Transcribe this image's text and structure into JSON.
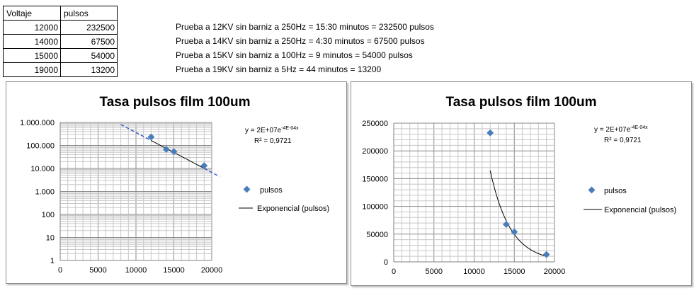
{
  "sheet": {
    "headers": [
      "Voltaje",
      "pulsos"
    ],
    "rows": [
      {
        "voltaje": "12000",
        "pulsos": "232500",
        "note": "Prueba a 12KV sin barniz a 250Hz = 15:30 minutos = 232500 pulsos"
      },
      {
        "voltaje": "14000",
        "pulsos": "67500",
        "note": "Prueba a 14KV sin barniz a 250Hz = 4:30 minutos = 67500 pulsos"
      },
      {
        "voltaje": "15000",
        "pulsos": "54000",
        "note": "Prueba a 15KV sin barniz a 100Hz = 9 minutos = 54000 pulsos"
      },
      {
        "voltaje": "19000",
        "pulsos": "13200",
        "note": "Prueba a 19KV sin barniz a 5Hz = 44 minutos = 13200"
      }
    ]
  },
  "chart_data": [
    {
      "type": "scatter",
      "title": "Tasa pulsos film 100um",
      "yscale": "log",
      "x": [
        12000,
        14000,
        15000,
        19000
      ],
      "series": [
        {
          "name": "pulsos",
          "values": [
            232500,
            67500,
            54000,
            13200
          ]
        }
      ],
      "trendline": {
        "name": "Exponencial (pulsos)",
        "a": 20000000,
        "b": -0.0004,
        "x_range": [
          8000,
          21000
        ]
      },
      "equation": {
        "base": "y = 2E+07e",
        "exp": "-4E-04x"
      },
      "r2": "R² = 0,9721",
      "xlim": [
        0,
        20000
      ],
      "ylim": [
        1,
        1000000
      ],
      "xticks": [
        "0",
        "5000",
        "10000",
        "15000",
        "20000"
      ],
      "yticks": [
        "1",
        "10",
        "100",
        "1.000",
        "10.000",
        "100.000",
        "1.000.000"
      ],
      "grid": true,
      "legend_position": "right",
      "colors": {
        "marker": "#4a7ebb",
        "trend": "#000000",
        "trend_ext": "#3c5fc4"
      }
    },
    {
      "type": "scatter",
      "title": "Tasa pulsos film 100um",
      "yscale": "linear",
      "x": [
        12000,
        14000,
        15000,
        19000
      ],
      "series": [
        {
          "name": "pulsos",
          "values": [
            232500,
            67500,
            54000,
            13200
          ]
        }
      ],
      "trendline": {
        "name": "Exponencial (pulsos)",
        "a": 20000000,
        "b": -0.0004,
        "x_range": [
          12000,
          19000
        ]
      },
      "equation": {
        "base": "y = 2E+07e",
        "exp": "-4E-04x"
      },
      "r2": "R² = 0,9721",
      "xlim": [
        0,
        20000
      ],
      "ylim": [
        0,
        250000
      ],
      "xticks": [
        "0",
        "5000",
        "10000",
        "15000",
        "20000"
      ],
      "yticks": [
        "0",
        "50000",
        "100000",
        "150000",
        "200000",
        "250000"
      ],
      "grid": true,
      "legend_position": "right",
      "colors": {
        "marker": "#4a7ebb",
        "trend": "#000000"
      }
    }
  ]
}
